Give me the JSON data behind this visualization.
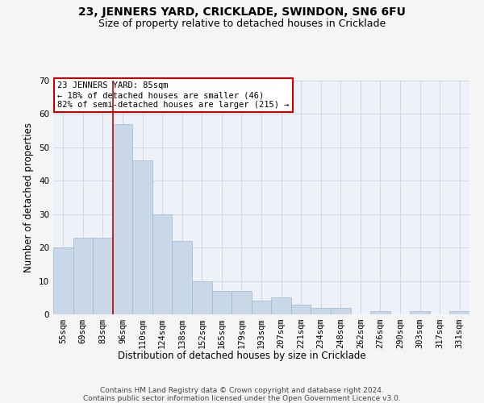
{
  "title": "23, JENNERS YARD, CRICKLADE, SWINDON, SN6 6FU",
  "subtitle": "Size of property relative to detached houses in Cricklade",
  "xlabel": "Distribution of detached houses by size in Cricklade",
  "ylabel": "Number of detached properties",
  "categories": [
    "55sqm",
    "69sqm",
    "83sqm",
    "96sqm",
    "110sqm",
    "124sqm",
    "138sqm",
    "152sqm",
    "165sqm",
    "179sqm",
    "193sqm",
    "207sqm",
    "221sqm",
    "234sqm",
    "248sqm",
    "262sqm",
    "276sqm",
    "290sqm",
    "303sqm",
    "317sqm",
    "331sqm"
  ],
  "values": [
    20,
    23,
    23,
    57,
    46,
    30,
    22,
    10,
    7,
    7,
    4,
    5,
    3,
    2,
    2,
    0,
    1,
    0,
    1,
    0,
    1
  ],
  "bar_color": "#c8d8e8",
  "bar_edge_color": "#a0b8cc",
  "red_line_index": 2,
  "annotation_lines": [
    "23 JENNERS YARD: 85sqm",
    "← 18% of detached houses are smaller (46)",
    "82% of semi-detached houses are larger (215) →"
  ],
  "annotation_box_color": "#ffffff",
  "annotation_box_edge": "#cc0000",
  "red_line_color": "#cc0000",
  "ylim": [
    0,
    70
  ],
  "yticks": [
    0,
    10,
    20,
    30,
    40,
    50,
    60,
    70
  ],
  "grid_color": "#d0d8e8",
  "bg_color": "#eef2f8",
  "fig_bg_color": "#f5f5f5",
  "footer_line1": "Contains HM Land Registry data © Crown copyright and database right 2024.",
  "footer_line2": "Contains public sector information licensed under the Open Government Licence v3.0.",
  "title_fontsize": 10,
  "subtitle_fontsize": 9,
  "axis_label_fontsize": 8.5,
  "tick_fontsize": 7.5,
  "annotation_fontsize": 7.5,
  "footer_fontsize": 6.5
}
